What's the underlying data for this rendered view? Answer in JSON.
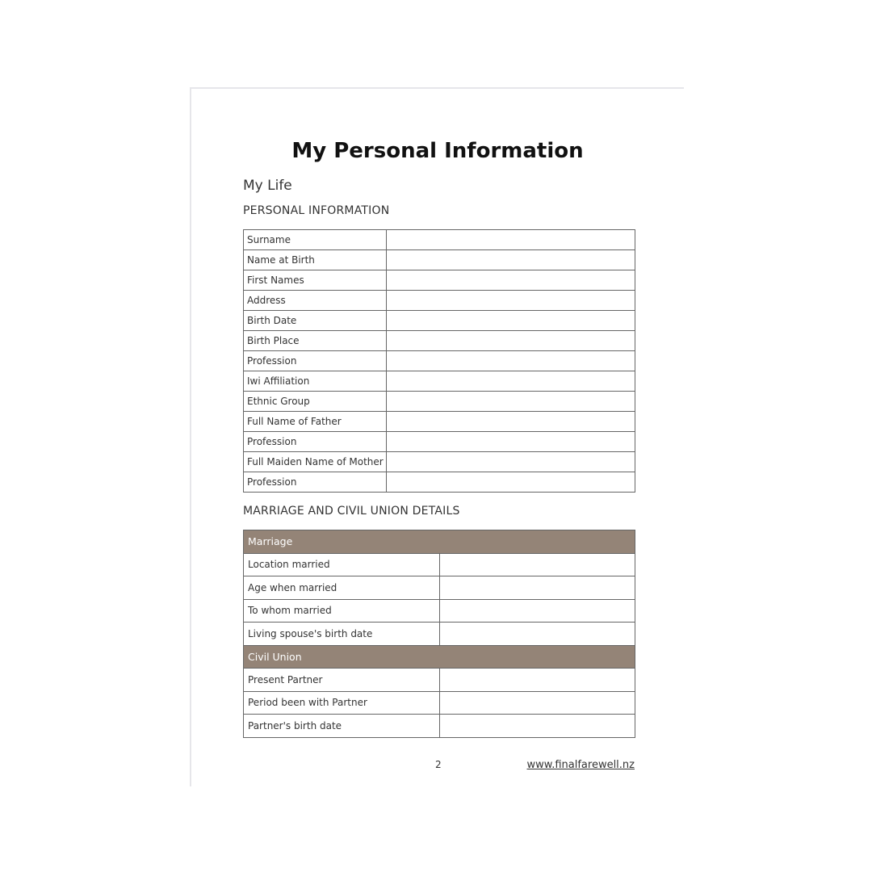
{
  "title": "My Personal Information",
  "subtitle": "My Life",
  "personal": {
    "heading": "PERSONAL INFORMATION",
    "rows": [
      "Surname",
      "Name at Birth",
      "First Names",
      "Address",
      "Birth Date",
      "Birth Place",
      "Profession",
      "Iwi Affiliation",
      "Ethnic Group",
      "Full Name of Father",
      "Profession",
      "Full Maiden Name of Mother",
      "Profession"
    ]
  },
  "marriage": {
    "heading": "MARRIAGE AND CIVIL UNION DETAILS",
    "header_color": "#948477",
    "marriage_header": "Marriage",
    "marriage_rows": [
      "Location married",
      "Age when married",
      "To whom married",
      "Living spouse's birth date"
    ],
    "civil_header": "Civil Union",
    "civil_rows": [
      "Present Partner",
      "Period been with Partner",
      "Partner's birth date"
    ]
  },
  "footer": {
    "page_number": "2",
    "url": "www.finalfarewell.nz"
  }
}
